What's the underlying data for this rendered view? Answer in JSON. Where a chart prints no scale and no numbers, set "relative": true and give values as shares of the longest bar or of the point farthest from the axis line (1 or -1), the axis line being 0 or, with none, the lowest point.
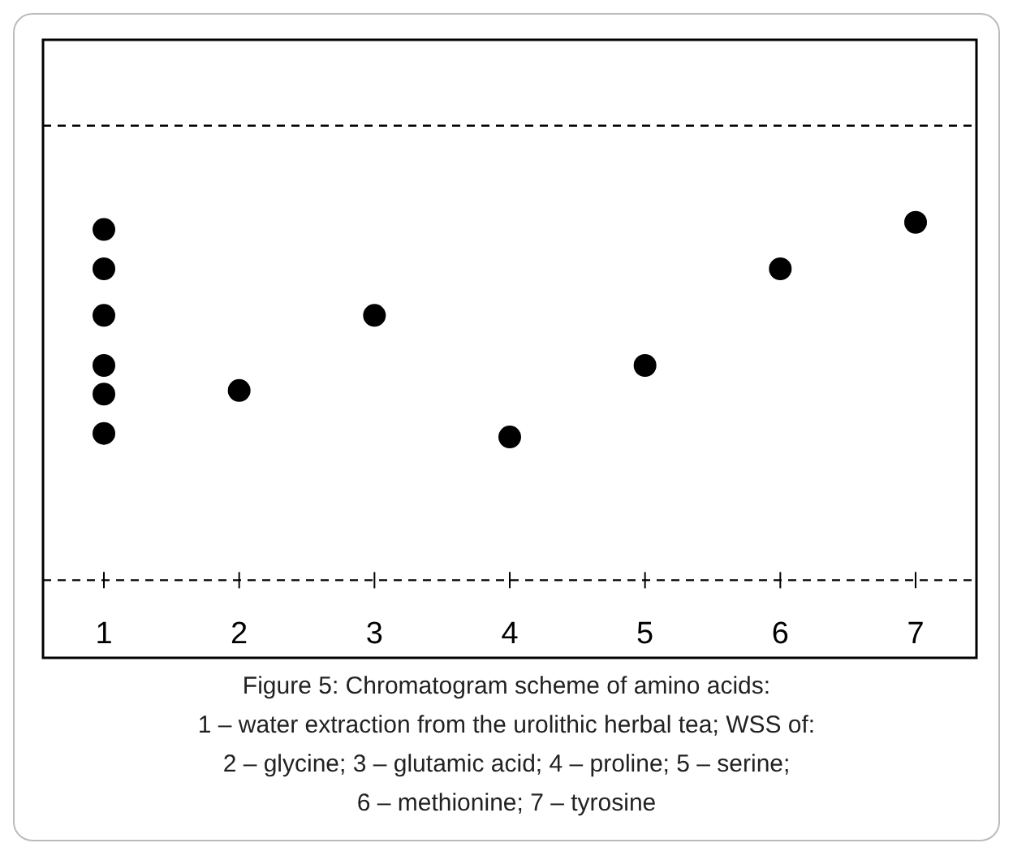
{
  "chart_data": {
    "type": "scatter",
    "relative": true,
    "categories": [
      "1",
      "2",
      "3",
      "4",
      "5",
      "6",
      "7"
    ],
    "series": [
      {
        "color": "#000000",
        "x": [
          "1",
          "1",
          "1",
          "1",
          "1",
          "1",
          "2",
          "3",
          "4",
          "5",
          "6",
          "7"
        ],
        "values": [
          0.98,
          0.87,
          0.74,
          0.6,
          0.52,
          0.41,
          0.53,
          0.74,
          0.4,
          0.6,
          0.87,
          1
        ]
      }
    ],
    "marker": "circle",
    "legend": false,
    "ref_lines": [
      {
        "axis": "y",
        "value": 0,
        "line_style": "dashed",
        "color": "#000000"
      },
      {
        "axis": "y",
        "value": 1.27,
        "line_style": "dashed",
        "color": "#000000"
      }
    ],
    "annotations": [
      "Figure 5: Chromatogram scheme of amino acids:",
      "1 – water extraction from the urolithic herbal tea; WSS of:",
      "2 – glycine; 3 – glutamic acid; 4 – proline; 5 – serine;",
      "6 – methionine; 7 – tyrosine"
    ]
  }
}
